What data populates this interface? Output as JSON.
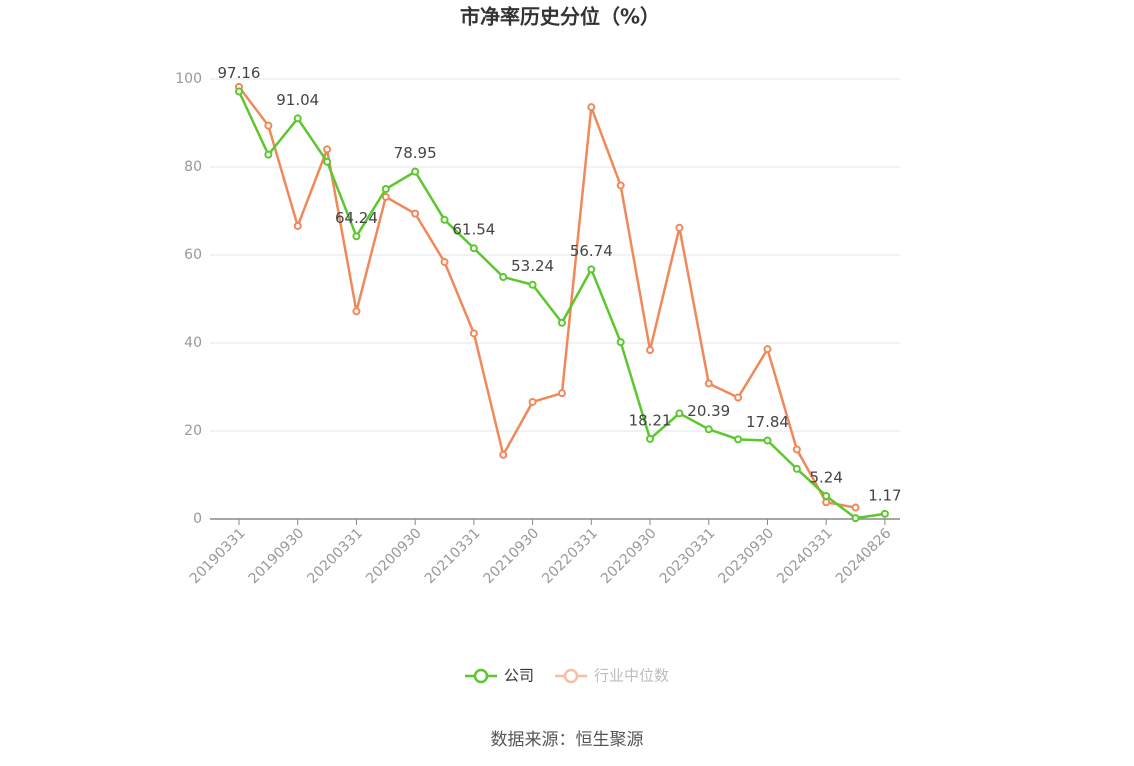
{
  "chart_data": {
    "type": "line",
    "title": "市净率历史分位（%）",
    "source": "数据来源：恒生聚源",
    "categories": [
      "20190331",
      null,
      "20190930",
      null,
      "20200331",
      null,
      "20200930",
      null,
      "20210331",
      null,
      "20210930",
      null,
      "20220331",
      null,
      "20220930",
      null,
      "20230331",
      null,
      "20230930",
      null,
      "20240331",
      null,
      "20240826"
    ],
    "series": [
      {
        "name": "公司",
        "color": "#5cc72f",
        "values": [
          97.16,
          82.8,
          91.04,
          81.2,
          64.24,
          75.0,
          78.95,
          68.0,
          61.54,
          55.0,
          53.24,
          44.6,
          56.74,
          40.2,
          18.21,
          24.0,
          20.39,
          18.1,
          17.84,
          11.4,
          5.24,
          0.2,
          1.17
        ],
        "value_labels": [
          "97.16",
          null,
          "91.04",
          null,
          "64.24",
          null,
          "78.95",
          null,
          "61.54",
          null,
          "53.24",
          null,
          "56.74",
          null,
          "18.21",
          null,
          "20.39",
          null,
          "17.84",
          null,
          "5.24",
          null,
          "1.17"
        ]
      },
      {
        "name": "行业中位数",
        "color": "#f0895a",
        "values": [
          98.2,
          89.4,
          66.6,
          84.0,
          47.2,
          73.2,
          69.4,
          58.4,
          42.2,
          14.6,
          26.6,
          28.6,
          93.6,
          75.8,
          38.4,
          66.2,
          30.8,
          27.6,
          38.6,
          15.8,
          3.8,
          2.6,
          null
        ]
      }
    ],
    "ylim": [
      0,
      100
    ],
    "yticks": [
      0,
      20,
      40,
      60,
      80,
      100
    ],
    "grid": true
  }
}
